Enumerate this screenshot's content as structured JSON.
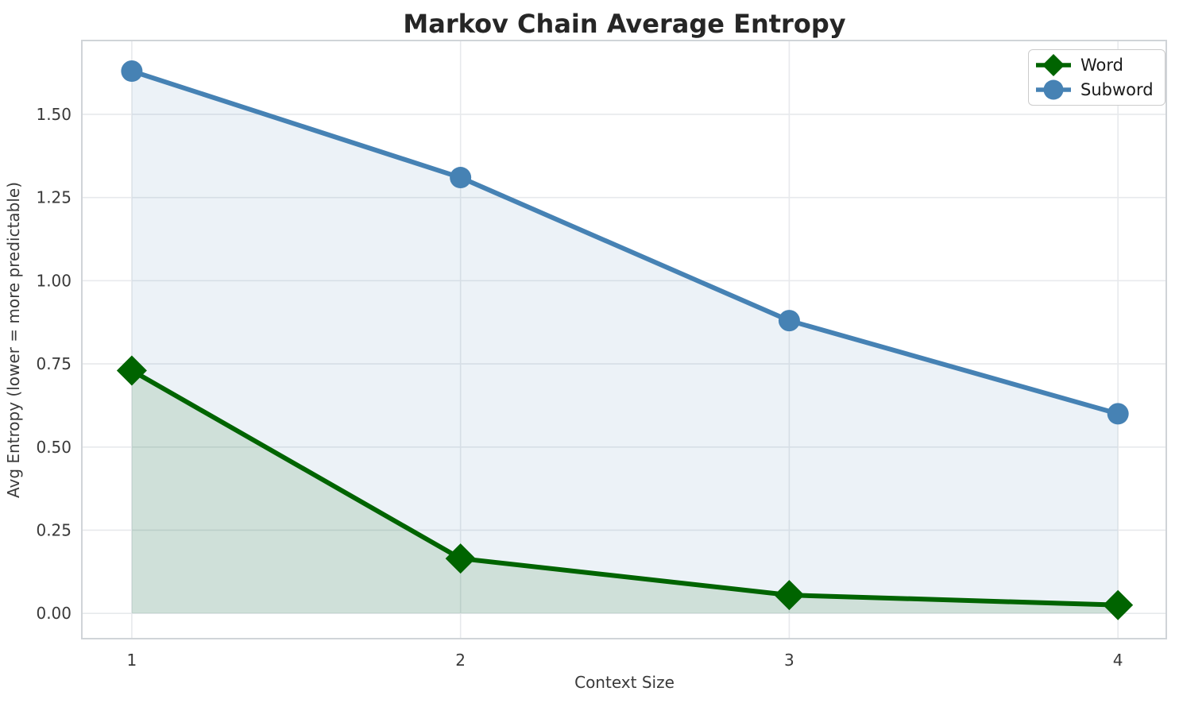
{
  "chart_data": {
    "type": "line",
    "title": "Markov Chain Average Entropy",
    "xlabel": "Context Size",
    "ylabel": "Avg Entropy (lower = more predictable)",
    "x": [
      1,
      2,
      3,
      4
    ],
    "series": [
      {
        "name": "Word",
        "values": [
          0.73,
          0.165,
          0.055,
          0.025
        ],
        "color": "#006400",
        "marker": "diamond",
        "fill_alpha": 0.12
      },
      {
        "name": "Subword",
        "values": [
          1.63,
          1.31,
          0.88,
          0.6
        ],
        "color": "#4682B4",
        "marker": "circle",
        "fill_alpha": 0.1
      }
    ],
    "xticks": [
      "1",
      "2",
      "3",
      "4"
    ],
    "xtick_values": [
      1,
      2,
      3,
      4
    ],
    "yticks": [
      "0.00",
      "0.25",
      "0.50",
      "0.75",
      "1.00",
      "1.25",
      "1.50"
    ],
    "ytick_values": [
      0,
      0.25,
      0.5,
      0.75,
      1.0,
      1.25,
      1.5
    ],
    "xlim": [
      0.848,
      4.147
    ],
    "ylim": [
      -0.076,
      1.722
    ],
    "fill_to_zero": true,
    "grid": true,
    "legend_position": "upper right",
    "colors": {
      "background": "#ffffff",
      "grid": "#e7e9ec",
      "spine": "#d0d4d8",
      "title_text": "#262626",
      "tick_text": "#3a3a3a"
    }
  }
}
